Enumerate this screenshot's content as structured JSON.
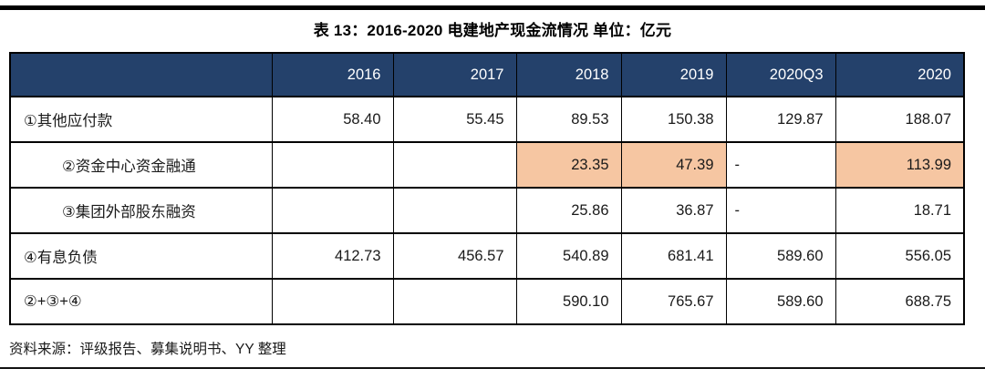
{
  "title": "表 13：2016-2020 电建地产现金流情况 单位：亿元",
  "source": "资料来源：评级报告、募集说明书、YY 整理",
  "colors": {
    "header_bg": "#24416b",
    "header_text": "#ffffff",
    "highlight": "#f6c6a2",
    "rule": "#000000"
  },
  "chart_data": {
    "type": "table",
    "columns": [
      "",
      "2016",
      "2017",
      "2018",
      "2019",
      "2020Q3",
      "2020"
    ],
    "rows": [
      {
        "label": "①其他应付款",
        "indent": false,
        "cells": [
          {
            "text": "58.40"
          },
          {
            "text": "55.45"
          },
          {
            "text": "89.53"
          },
          {
            "text": "150.38"
          },
          {
            "text": "129.87"
          },
          {
            "text": "188.07"
          }
        ]
      },
      {
        "label": "②资金中心资金融通",
        "indent": true,
        "cells": [
          {
            "text": ""
          },
          {
            "text": ""
          },
          {
            "text": "23.35",
            "highlight": true
          },
          {
            "text": "47.39",
            "highlight": true
          },
          {
            "text": "-"
          },
          {
            "text": "113.99",
            "highlight": true
          }
        ]
      },
      {
        "label": "③集团外部股东融资",
        "indent": true,
        "cells": [
          {
            "text": ""
          },
          {
            "text": ""
          },
          {
            "text": "25.86"
          },
          {
            "text": "36.87"
          },
          {
            "text": "-"
          },
          {
            "text": "18.71"
          }
        ]
      },
      {
        "label": "④有息负债",
        "indent": false,
        "cells": [
          {
            "text": "412.73"
          },
          {
            "text": "456.57"
          },
          {
            "text": "540.89"
          },
          {
            "text": "681.41"
          },
          {
            "text": "589.60"
          },
          {
            "text": "556.05"
          }
        ]
      },
      {
        "label": "②+③+④",
        "indent": false,
        "cells": [
          {
            "text": ""
          },
          {
            "text": ""
          },
          {
            "text": "590.10"
          },
          {
            "text": "765.67"
          },
          {
            "text": "589.60"
          },
          {
            "text": "688.75"
          }
        ]
      }
    ]
  }
}
